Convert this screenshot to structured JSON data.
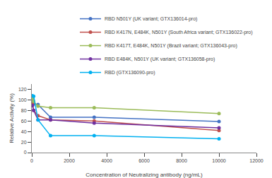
{
  "chart_data": {
    "type": "line",
    "x": [
      33,
      100,
      333,
      1000,
      3333,
      10000
    ],
    "series": [
      {
        "name": "RBD N501Y (UK variant; GTX136014-pro)",
        "color": "#4472c4",
        "marker": "circle",
        "values": [
          98,
          92,
          91,
          67,
          67,
          59
        ]
      },
      {
        "name": "RBD K417N, E484K, N501Y (South Africa variant; GTX136022-pro)",
        "color": "#c0504d",
        "marker": "circle",
        "values": [
          93,
          80,
          70,
          62,
          60,
          42
        ]
      },
      {
        "name": "RBD K417T, E484K, N501Y (Brazil variant; GTX136043-pro)",
        "color": "#9bbb59",
        "marker": "circle",
        "values": [
          103,
          97,
          88,
          85,
          85,
          74
        ]
      },
      {
        "name": "RBD E484K, N501Y (UK variant; GTX136058-pro)",
        "color": "#7030a0",
        "marker": "circle",
        "values": [
          89,
          80,
          62,
          62,
          56,
          47
        ]
      },
      {
        "name": "RBD (GTX136090-pro)",
        "color": "#00b0f0",
        "marker": "circle",
        "values": [
          108,
          107,
          62,
          32,
          32,
          26
        ]
      }
    ],
    "xlabel": "Concentration of Neutralizing antibody (ng/mL)",
    "ylabel": "Relative Activity (%)",
    "xlim": [
      0,
      12000
    ],
    "ylim": [
      0,
      130
    ],
    "xticks": [
      0,
      2000,
      4000,
      6000,
      8000,
      10000,
      12000
    ],
    "yticks": [
      0,
      20,
      40,
      60,
      80,
      100,
      120
    ],
    "grid": false,
    "legend": "upper right"
  }
}
